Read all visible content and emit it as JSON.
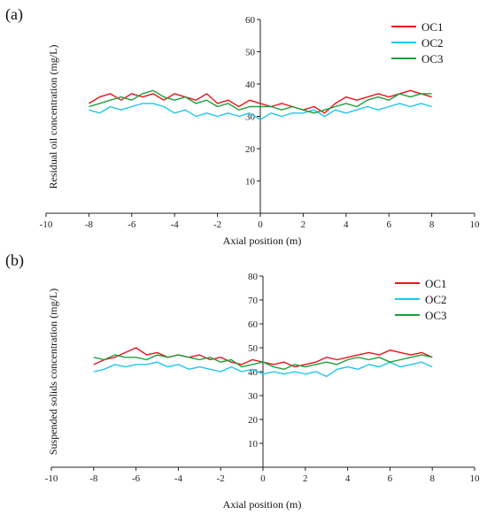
{
  "chart_data": [
    {
      "type": "line",
      "panel_label": "(a)",
      "title": "",
      "xlabel": "Axial position (m)",
      "ylabel": "Residual oil concentration (mg/L)",
      "xlim": [
        -10,
        10
      ],
      "ylim": [
        0,
        60
      ],
      "xticks": [
        -10,
        -8,
        -6,
        -4,
        -2,
        0,
        2,
        4,
        6,
        8,
        10
      ],
      "yticks": [
        10,
        20,
        30,
        40,
        50,
        60
      ],
      "grid": false,
      "legend_position": "top-right",
      "x": [
        -8,
        -7.5,
        -7,
        -6.5,
        -6,
        -5.5,
        -5,
        -4.5,
        -4,
        -3.5,
        -3,
        -2.5,
        -2,
        -1.5,
        -1,
        -0.5,
        0,
        0.5,
        1,
        1.5,
        2,
        2.5,
        3,
        3.5,
        4,
        4.5,
        5,
        5.5,
        6,
        6.5,
        7,
        7.5,
        8
      ],
      "series": [
        {
          "name": "OC1",
          "color": "#e8141b",
          "values": [
            34,
            36,
            37,
            35,
            37,
            36,
            37,
            35,
            37,
            36,
            35,
            37,
            34,
            35,
            33,
            35,
            34,
            33,
            34,
            33,
            32,
            33,
            31,
            34,
            36,
            35,
            36,
            37,
            36,
            37,
            38,
            37,
            36
          ]
        },
        {
          "name": "OC2",
          "color": "#1cc7ef",
          "values": [
            32,
            31,
            33,
            32,
            33,
            34,
            34,
            33,
            31,
            32,
            30,
            31,
            30,
            31,
            30,
            31,
            29,
            31,
            30,
            31,
            31,
            32,
            30,
            32,
            31,
            32,
            33,
            32,
            33,
            34,
            33,
            34,
            33
          ]
        },
        {
          "name": "OC3",
          "color": "#1f9e3c",
          "values": [
            33,
            34,
            35,
            36,
            35,
            37,
            38,
            36,
            35,
            36,
            34,
            35,
            33,
            34,
            32,
            33,
            33,
            33,
            32,
            33,
            32,
            31,
            32,
            33,
            34,
            33,
            35,
            36,
            35,
            37,
            36,
            37,
            37
          ]
        }
      ]
    },
    {
      "type": "line",
      "panel_label": "(b)",
      "title": "",
      "xlabel": "Axial position (m)",
      "ylabel": "Suspended solids concentration (mg/L)",
      "xlim": [
        -10,
        10
      ],
      "ylim": [
        0,
        80
      ],
      "xticks": [
        -10,
        -8,
        -6,
        -4,
        -2,
        0,
        2,
        4,
        6,
        8,
        10
      ],
      "yticks": [
        10,
        20,
        30,
        40,
        50,
        60,
        70,
        80
      ],
      "grid": false,
      "legend_position": "top-right",
      "x": [
        -8,
        -7.5,
        -7,
        -6.5,
        -6,
        -5.5,
        -5,
        -4.5,
        -4,
        -3.5,
        -3,
        -2.5,
        -2,
        -1.5,
        -1,
        -0.5,
        0,
        0.5,
        1,
        1.5,
        2,
        2.5,
        3,
        3.5,
        4,
        4.5,
        5,
        5.5,
        6,
        6.5,
        7,
        7.5,
        8
      ],
      "series": [
        {
          "name": "OC1",
          "color": "#e8141b",
          "values": [
            43,
            45,
            46,
            48,
            50,
            47,
            48,
            46,
            47,
            46,
            47,
            45,
            46,
            44,
            43,
            45,
            44,
            43,
            44,
            42,
            43,
            44,
            46,
            45,
            46,
            47,
            48,
            47,
            49,
            48,
            47,
            48,
            46
          ]
        },
        {
          "name": "OC2",
          "color": "#1cc7ef",
          "values": [
            40,
            41,
            43,
            42,
            43,
            43,
            44,
            42,
            43,
            41,
            42,
            41,
            40,
            42,
            40,
            41,
            39,
            40,
            39,
            40,
            39,
            40,
            38,
            41,
            42,
            41,
            43,
            42,
            44,
            42,
            43,
            44,
            42
          ]
        },
        {
          "name": "OC3",
          "color": "#1f9e3c",
          "values": [
            46,
            45,
            47,
            46,
            46,
            45,
            47,
            46,
            47,
            46,
            45,
            46,
            44,
            45,
            42,
            43,
            44,
            42,
            41,
            43,
            42,
            43,
            44,
            43,
            45,
            46,
            45,
            46,
            44,
            45,
            46,
            47,
            46
          ]
        }
      ]
    }
  ]
}
